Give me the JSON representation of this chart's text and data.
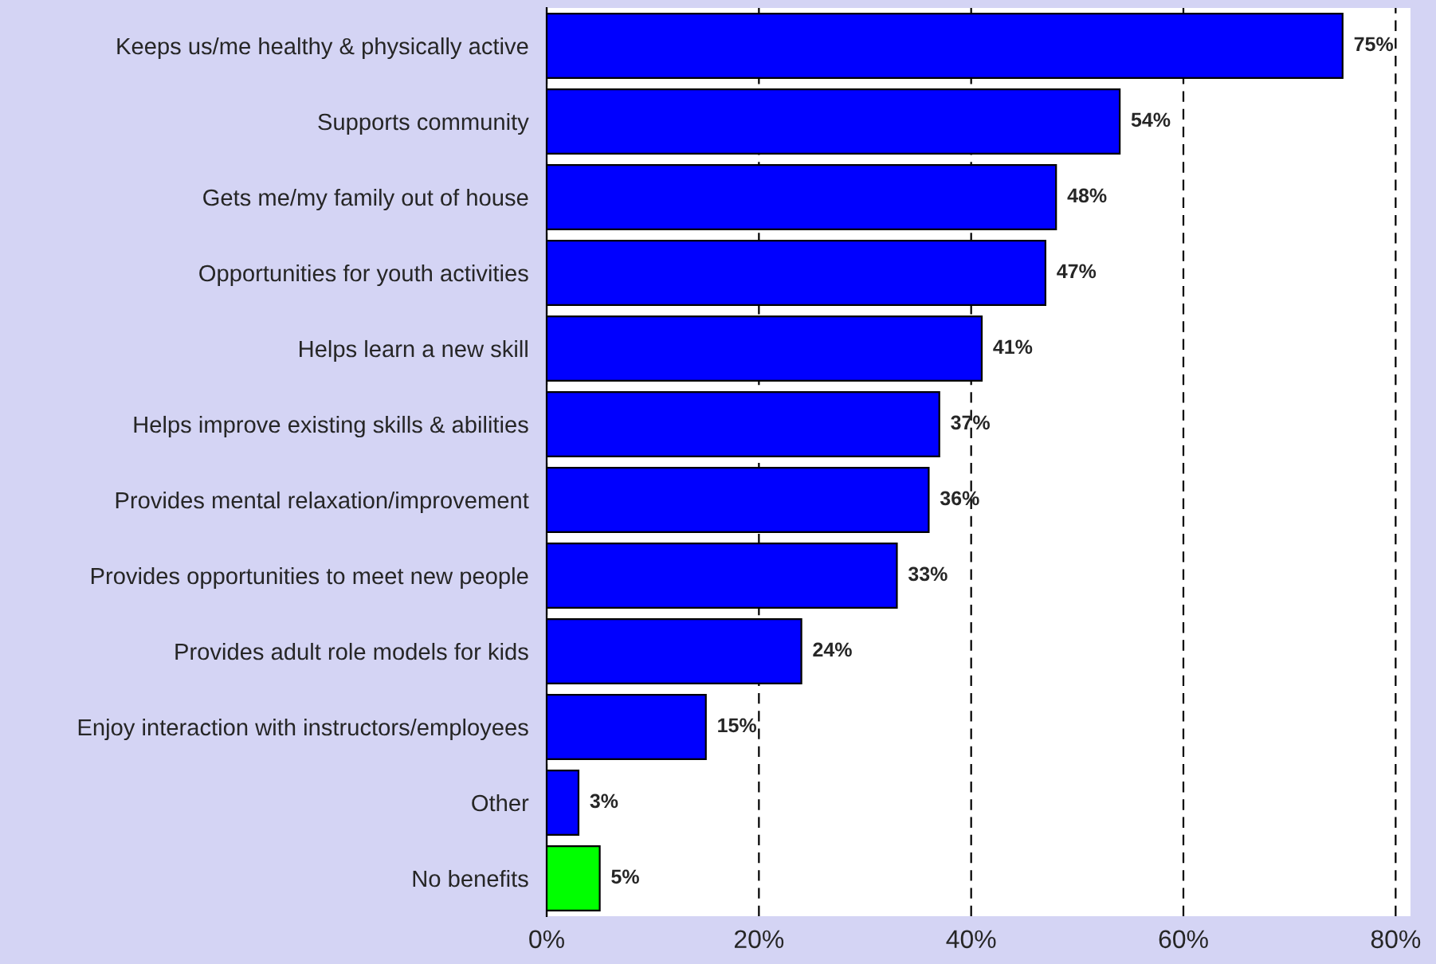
{
  "chart_data": {
    "type": "bar",
    "orientation": "horizontal",
    "categories": [
      "Keeps us/me healthy & physically active",
      "Supports community",
      "Gets me/my family out of house",
      "Opportunities for youth activities",
      "Helps learn a new skill",
      "Helps improve existing skills & abilities",
      "Provides mental relaxation/improvement",
      "Provides opportunities to meet new people",
      "Provides adult role models for kids",
      "Enjoy interaction with instructors/employees",
      "Other",
      "No benefits"
    ],
    "values": [
      75,
      54,
      48,
      47,
      41,
      37,
      36,
      33,
      24,
      15,
      3,
      5
    ],
    "colors": [
      "#0000ff",
      "#0000ff",
      "#0000ff",
      "#0000ff",
      "#0000ff",
      "#0000ff",
      "#0000ff",
      "#0000ff",
      "#0000ff",
      "#0000ff",
      "#0000ff",
      "#00ff00"
    ],
    "value_labels": [
      "75%",
      "54%",
      "48%",
      "47%",
      "41%",
      "37%",
      "36%",
      "33%",
      "24%",
      "15%",
      "3%",
      "5%"
    ],
    "xlim": [
      0,
      81.4
    ],
    "xticks": [
      {
        "value": 0,
        "label": "0%"
      },
      {
        "value": 20,
        "label": "20%"
      },
      {
        "value": 40,
        "label": "40%"
      },
      {
        "value": 60,
        "label": "60%"
      },
      {
        "value": 80,
        "label": "80%"
      }
    ],
    "grid": "x",
    "line_style": "dashed",
    "legend": false
  }
}
